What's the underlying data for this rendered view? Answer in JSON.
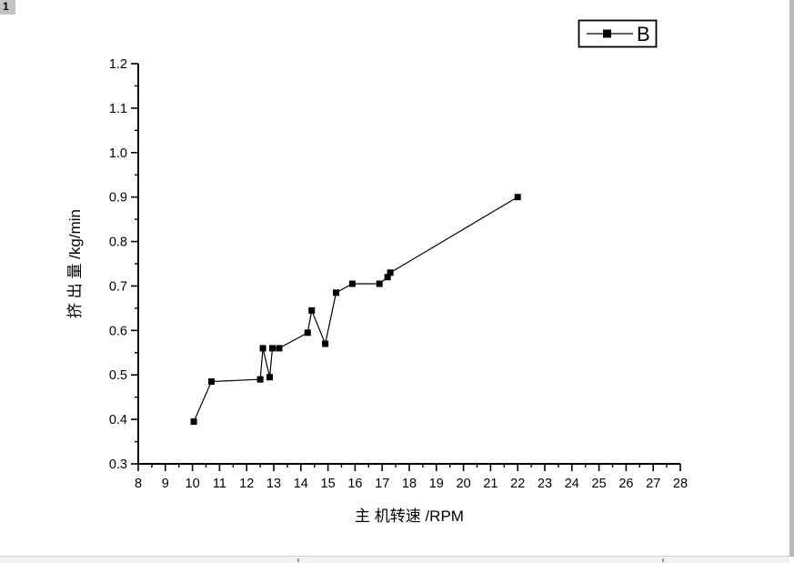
{
  "window": {
    "row_header": "1",
    "header_bg": "#c3c3c3",
    "scrollbar_track": "#f2f2f2",
    "scrollbar_edge": "#b9b9b9",
    "scrollbar_mark": "#9a9a9a",
    "plot_color": "#000000"
  },
  "chart_data": {
    "type": "line",
    "title": "",
    "xlabel": "主 机转速 /RPM",
    "ylabel": "挤 出 量 /kg/min",
    "xlim": [
      8,
      28
    ],
    "ylim": [
      0.3,
      1.2
    ],
    "grid": false,
    "x_tick_labels": [
      "8",
      "9",
      "10",
      "11",
      "12",
      "13",
      "14",
      "15",
      "16",
      "17",
      "18",
      "19",
      "20",
      "21",
      "22",
      "23",
      "24",
      "25",
      "26",
      "27",
      "28"
    ],
    "y_tick_labels": [
      "0.3",
      "0.4",
      "0.5",
      "0.6",
      "0.7",
      "0.8",
      "0.9",
      "1.0",
      "1.1",
      "1.2"
    ],
    "x_minor_step": 0.5,
    "y_minor_step": 0.05,
    "legend": {
      "position": "top-right",
      "entries": [
        "B"
      ]
    },
    "series": [
      {
        "name": "B",
        "marker": "filled-square",
        "color": "#000000",
        "points": [
          [
            10.05,
            0.395
          ],
          [
            10.7,
            0.485
          ],
          [
            12.5,
            0.49
          ],
          [
            12.6,
            0.56
          ],
          [
            12.85,
            0.495
          ],
          [
            12.95,
            0.56
          ],
          [
            13.2,
            0.56
          ],
          [
            14.25,
            0.595
          ],
          [
            14.4,
            0.645
          ],
          [
            14.9,
            0.57
          ],
          [
            15.3,
            0.685
          ],
          [
            15.9,
            0.705
          ],
          [
            16.9,
            0.705
          ],
          [
            17.2,
            0.72
          ],
          [
            17.3,
            0.73
          ],
          [
            22.0,
            0.9
          ]
        ]
      }
    ]
  }
}
